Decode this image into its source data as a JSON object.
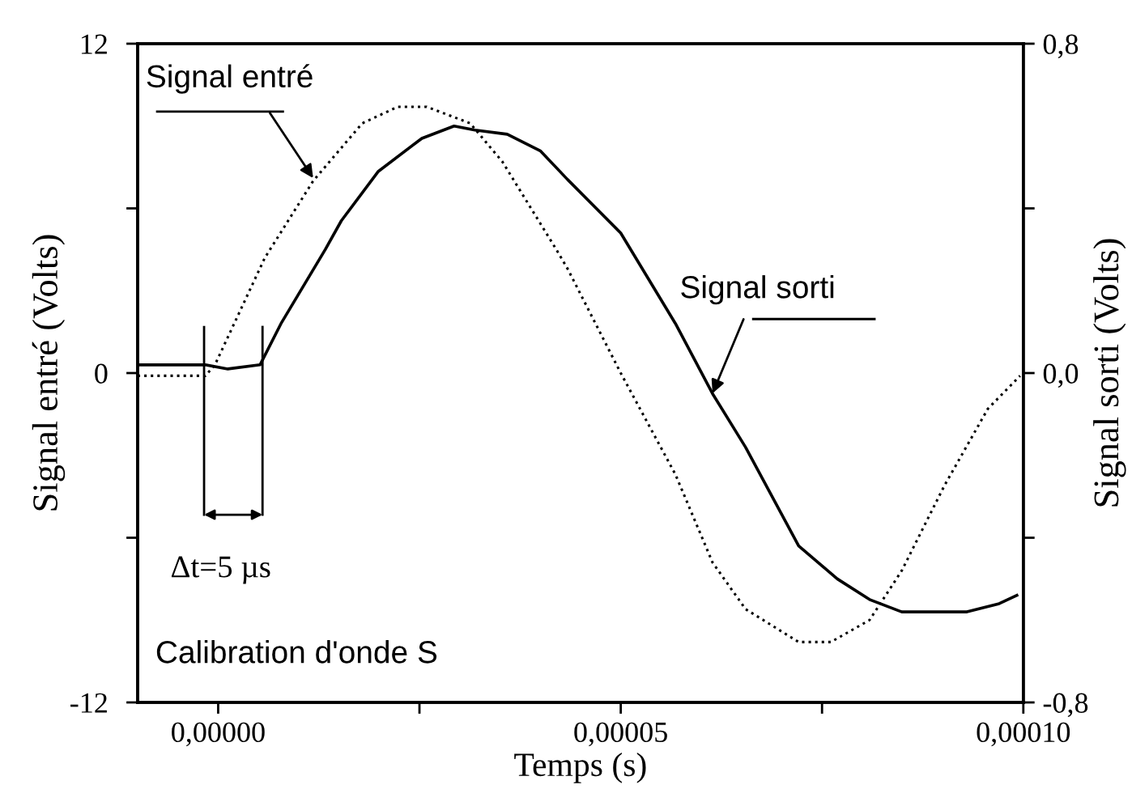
{
  "chart_data": {
    "type": "line",
    "xlabel": "Temps (s)",
    "ylabel": "Signal entré (Volts)",
    "y2label": "Signal sorti (Volts)",
    "xlim": [
      -1e-05,
      0.0001
    ],
    "xticks": [
      {
        "value": 0,
        "label": "0,00000"
      },
      {
        "value": 2.5e-05,
        "label": null
      },
      {
        "value": 5e-05,
        "label": "0,00005"
      },
      {
        "value": 7.5e-05,
        "label": null
      },
      {
        "value": 0.0001,
        "label": "0,00010"
      }
    ],
    "ylim": [
      -12,
      12
    ],
    "yticks": [
      -12,
      {
        "value": -6,
        "label": null
      },
      0,
      {
        "value": 6,
        "label": null
      },
      12
    ],
    "y2lim": [
      -0.8,
      0.8
    ],
    "y2ticks": [
      {
        "value": -0.8,
        "label": "-0,8"
      },
      {
        "value": -0.4,
        "label": null
      },
      {
        "value": 0,
        "label": "0,0"
      },
      {
        "value": 0.4,
        "label": null
      },
      {
        "value": 0.8,
        "label": "0,8"
      }
    ],
    "grid": false,
    "marker": "none",
    "series": [
      {
        "color": "#000000",
        "line_style": "dotted",
        "x": [
          -1e-05,
          -1.6e-06,
          -4e-07,
          5.8e-06,
          1.18e-05,
          1.79e-05,
          2.23e-05,
          2.59e-05,
          3.13e-05,
          3.53e-05,
          4.2e-05,
          4.34e-05,
          5e-05,
          5.68e-05,
          6.14e-05,
          6.55e-05,
          7.21e-05,
          7.61e-05,
          8.09e-05,
          8.49e-05,
          9.02e-05,
          9.56e-05,
          9.96e-05
        ],
        "values": [
          -0.1,
          -0.1,
          0.3,
          4.2,
          7.0,
          9.1,
          9.7,
          9.7,
          9.1,
          7.7,
          4.5,
          3.8,
          0.0,
          -3.7,
          -6.9,
          -8.6,
          -9.8,
          -9.8,
          -9.0,
          -7.2,
          -4.1,
          -1.3,
          -0.1
        ]
      },
      {
        "color": "#000000",
        "line_style": "solid",
        "axis": "y2",
        "x": [
          -1e-05,
          -1.6e-06,
          1.2e-06,
          5.2e-06,
          7.8e-06,
          1.33e-05,
          1.53e-05,
          1.99e-05,
          2.53e-05,
          2.93e-05,
          3.19e-05,
          3.59e-05,
          4e-05,
          4.34e-05,
          5e-05,
          5.68e-05,
          6.14e-05,
          6.55e-05,
          7.21e-05,
          7.69e-05,
          8.09e-05,
          8.49e-05,
          9.3e-05,
          9.7e-05,
          9.92e-05
        ],
        "values": [
          0.02,
          0.02,
          0.01,
          0.02,
          0.12,
          0.3,
          0.37,
          0.49,
          0.57,
          0.6,
          0.59,
          0.58,
          0.54,
          0.47,
          0.34,
          0.12,
          -0.05,
          -0.18,
          -0.42,
          -0.5,
          -0.55,
          -0.58,
          -0.58,
          -0.56,
          -0.54
        ]
      }
    ],
    "annotations": [
      {
        "text": "Signal entré",
        "x": 1.18e-05,
        "y": 7.1
      },
      {
        "text": "Signal sorti",
        "x": 6.14e-05,
        "y": -0.74
      },
      "Δt=5 µs",
      "Calibration d'onde S"
    ]
  }
}
